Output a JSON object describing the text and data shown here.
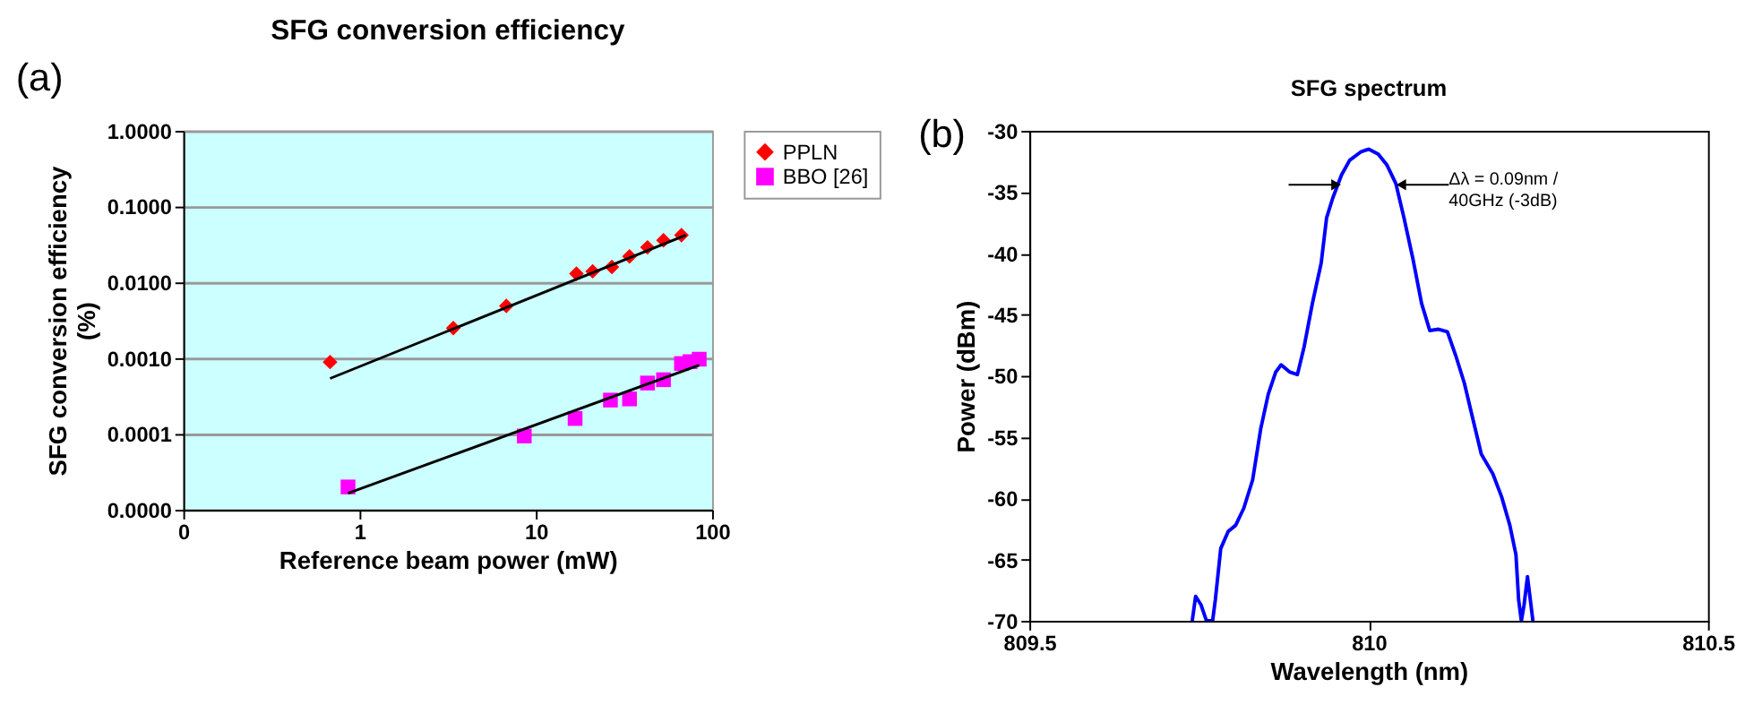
{
  "chart_data": [
    {
      "type": "scatter",
      "title": "SFG conversion efficiency",
      "xlabel": "Reference beam power (mW)",
      "ylabel": "SFG conversion efficiency\n(%)",
      "log": "xy",
      "grid": "y",
      "legend": "right",
      "xlim": [
        0.1,
        100
      ],
      "xticks": [
        {
          "value": 0.1,
          "label": "0"
        },
        1,
        10,
        100
      ],
      "ylim": [
        1e-05,
        1
      ],
      "yticks": [
        {
          "value": 1e-05,
          "label": "0.0000"
        },
        {
          "value": 0.0001,
          "label": "0.0001"
        },
        {
          "value": 0.001,
          "label": "0.0010"
        },
        {
          "value": 0.01,
          "label": "0.0100"
        },
        {
          "value": 0.1,
          "label": "0.1000"
        },
        {
          "value": 1,
          "label": "1.0000"
        }
      ],
      "annotations": [
        "(a)"
      ],
      "series": [
        {
          "name": "PPLN",
          "marker": "diamond",
          "color": "#ff0000",
          "x": [
            0.68,
            3.4,
            6.8,
            17,
            21,
            27,
            34,
            43,
            53,
            67
          ],
          "values": [
            0.00089,
            0.0025,
            0.0049,
            0.013,
            0.014,
            0.016,
            0.022,
            0.029,
            0.036,
            0.042
          ]
        },
        {
          "name": "BBO [26]",
          "marker": "square",
          "color": "#ff00ff",
          "x": [
            0.86,
            8.6,
            16.7,
            26.5,
            34,
            43,
            53,
            67,
            75,
            84.5
          ],
          "values": [
            2e-05,
            9.4e-05,
            0.00016,
            0.00028,
            0.00029,
            0.00047,
            0.00052,
            0.00085,
            0.0009,
            0.00097
          ]
        },
        {
          "type": "line",
          "color": "#000000",
          "x": [
            0.68,
            71
          ],
          "values": [
            0.00054,
            0.042
          ]
        },
        {
          "type": "line",
          "color": "#000000",
          "x": [
            0.86,
            84.5
          ],
          "values": [
            1.65e-05,
            0.00081
          ]
        }
      ]
    },
    {
      "type": "line",
      "title": "SFG spectrum",
      "xlabel": "Wavelength (nm)",
      "ylabel": "Power (dBm)",
      "grid": false,
      "legend": false,
      "xlim": [
        809.5,
        810.5
      ],
      "xticks": [
        809.5,
        810,
        810.5
      ],
      "ylim": [
        -70,
        -30
      ],
      "yticks": [
        -70,
        -65,
        -60,
        -55,
        -50,
        -45,
        -40,
        -35,
        -30
      ],
      "annotations": [
        "(b)",
        {
          "text": "Δλ = 0.09nm /\n40GHz (-3dB)",
          "x": 810.048,
          "y": -34.4
        }
      ],
      "series": [
        {
          "color": "#0000ff",
          "x": [
            809.74,
            809.745,
            809.753,
            809.761,
            809.77,
            809.774,
            809.782,
            809.793,
            809.804,
            809.816,
            809.829,
            809.841,
            809.852,
            809.863,
            809.871,
            809.884,
            809.895,
            809.905,
            809.917,
            809.93,
            809.938,
            809.947,
            809.96,
            809.972,
            809.989,
            810.0,
            810.014,
            810.027,
            810.04,
            810.052,
            810.065,
            810.078,
            810.09,
            810.103,
            810.116,
            810.128,
            810.141,
            810.153,
            810.166,
            810.183,
            810.196,
            810.208,
            810.217,
            810.221,
            810.225,
            810.229,
            810.234,
            810.242
          ],
          "values": [
            -70,
            -68.0,
            -68.7,
            -70,
            -70,
            -68.3,
            -64.1,
            -62.7,
            -62.2,
            -60.8,
            -58.5,
            -54.3,
            -51.5,
            -49.7,
            -49.1,
            -49.7,
            -49.9,
            -47.6,
            -44.1,
            -40.8,
            -37.1,
            -35.5,
            -33.6,
            -32.4,
            -31.7,
            -31.5,
            -31.9,
            -32.8,
            -34.3,
            -37.1,
            -40.4,
            -44.1,
            -46.3,
            -46.2,
            -46.4,
            -48.3,
            -50.6,
            -53.4,
            -56.4,
            -58.0,
            -59.9,
            -62.2,
            -64.6,
            -68.3,
            -70,
            -68.7,
            -66.4,
            -70
          ]
        }
      ]
    }
  ]
}
